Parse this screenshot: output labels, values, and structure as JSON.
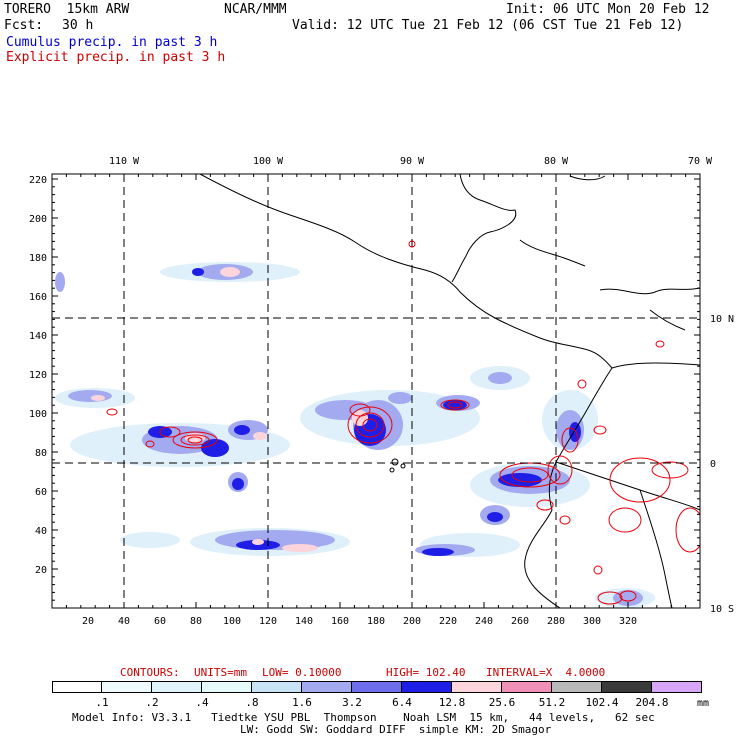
{
  "header": {
    "model": "TORERO  15km ARW",
    "org": "NCAR/MMM",
    "init": "Init: 06 UTC Mon 20 Feb 12",
    "fcst_label": "Fcst:",
    "fcst_value": "30 h",
    "valid": "Valid: 12 UTC Tue 21 Feb 12 (06 CST Tue 21 Feb 12)",
    "cumulus": "Cumulus precip. in past 3 h",
    "explicit": "Explicit precip. in past 3 h"
  },
  "colors": {
    "cumulus_text": "#0000cc",
    "explicit_text": "#cc0000",
    "contour": "#e8000a"
  },
  "axes": {
    "bottom_ticks": [
      "20",
      "40",
      "60",
      "80",
      "100",
      "120",
      "140",
      "160",
      "180",
      "200",
      "220",
      "240",
      "260",
      "280",
      "300",
      "320"
    ],
    "left_ticks": [
      "20",
      "40",
      "60",
      "80",
      "100",
      "120",
      "140",
      "160",
      "180",
      "200",
      "220"
    ],
    "top_lon": [
      "110 W",
      "100 W",
      "90 W",
      "80 W",
      "70 W"
    ],
    "right_lat": [
      "10 N",
      "0",
      "10 S"
    ]
  },
  "contours": {
    "label": "CONTOURS:",
    "units": "UNITS=mm",
    "low": "LOW= 0.10000",
    "high": "HIGH= 102.40",
    "interval": "INTERVAL=X  4.0000"
  },
  "colorbar": {
    "labels": [
      ".1",
      ".2",
      ".4",
      ".8",
      "1.6",
      "3.2",
      "6.4",
      "12.8",
      "25.6",
      "51.2",
      "102.4",
      "204.8"
    ],
    "units": "mm",
    "colors": [
      "#ffffff",
      "#f0fbff",
      "#dff4fb",
      "#e6fbfb",
      "#c8e2f6",
      "#a4aaf0",
      "#6e6eec",
      "#1e1ee6",
      "#fbd5db",
      "#f090b8",
      "#b9b9b9",
      "#3a3a3a",
      "#d8a6f8"
    ]
  },
  "footer": {
    "line1": "Model Info: V3.3.1   Tiedtke YSU PBL  Thompson    Noah LSM  15 km,   44 levels,   62 sec",
    "line2": "LW: Godd SW: Goddard DIFF  simple KM: 2D Smagor"
  }
}
